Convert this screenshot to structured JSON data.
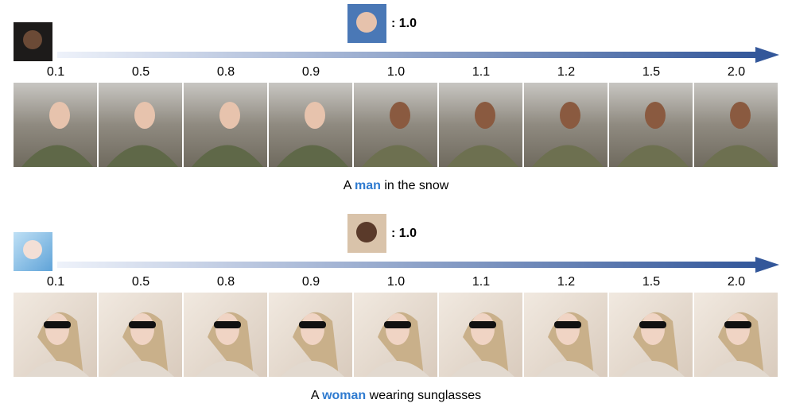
{
  "rows": [
    {
      "reference_weight": ": 1.0",
      "scales": [
        "0.1",
        "0.5",
        "0.8",
        "0.9",
        "1.0",
        "1.1",
        "1.2",
        "1.5",
        "2.0"
      ],
      "caption": {
        "before": "A",
        "highlight": "man",
        "after": "in the snow"
      }
    },
    {
      "reference_weight": ": 1.0",
      "scales": [
        "0.1",
        "0.5",
        "0.8",
        "0.9",
        "1.0",
        "1.1",
        "1.2",
        "1.5",
        "2.0"
      ],
      "caption": {
        "before": "A",
        "highlight": "woman",
        "after": "wearing sunglasses"
      }
    }
  ]
}
